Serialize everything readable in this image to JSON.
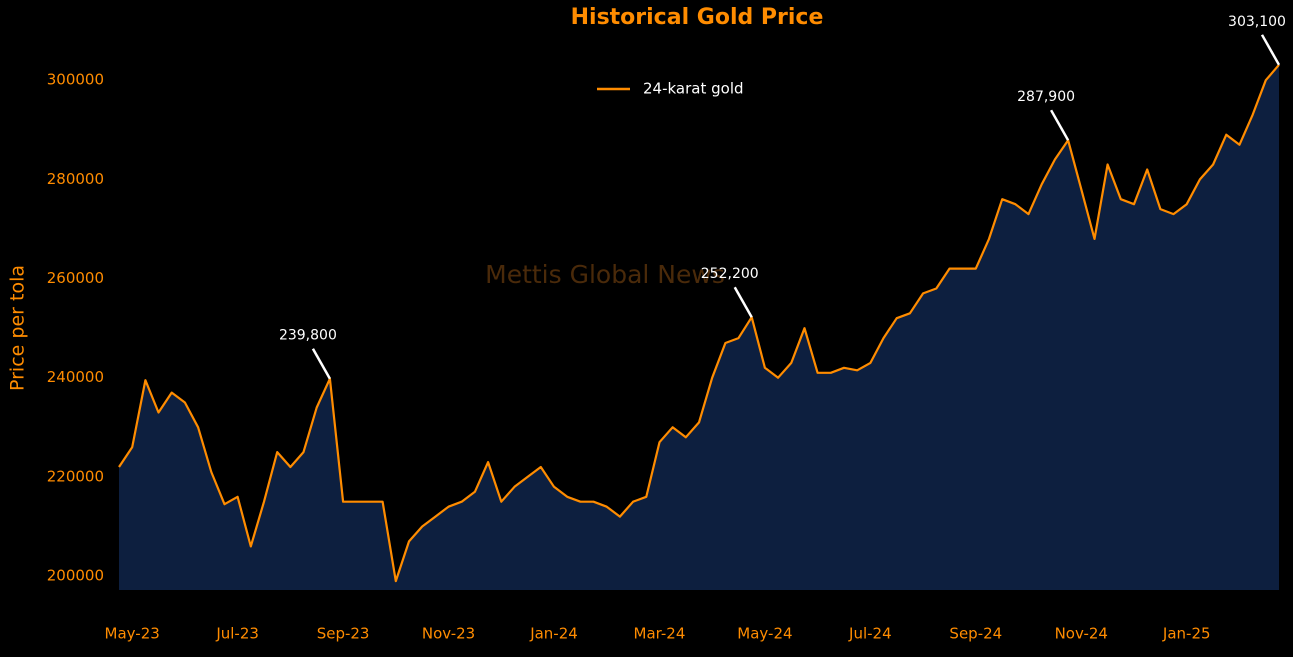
{
  "chart_data": {
    "type": "area",
    "title": "Historical Gold Price",
    "y_label": "Price per tola",
    "watermark": "Mettis Global News",
    "line_color": "#ff8c00",
    "fill_color": "#0d1f3f",
    "legend": "top",
    "categories": [
      null,
      "May-23",
      null,
      null,
      null,
      null,
      null,
      null,
      null,
      "Jul-23",
      null,
      null,
      null,
      null,
      null,
      null,
      null,
      "Sep-23",
      null,
      null,
      null,
      null,
      null,
      null,
      null,
      "Nov-23",
      null,
      null,
      null,
      null,
      null,
      null,
      null,
      "Jan-24",
      null,
      null,
      null,
      null,
      null,
      null,
      null,
      "Mar-24",
      null,
      null,
      null,
      null,
      null,
      null,
      null,
      "May-24",
      null,
      null,
      null,
      null,
      null,
      null,
      null,
      "Jul-24",
      null,
      null,
      null,
      null,
      null,
      null,
      null,
      "Sep-24",
      null,
      null,
      null,
      null,
      null,
      null,
      null,
      "Nov-24",
      null,
      null,
      null,
      null,
      null,
      null,
      null,
      "Jan-25",
      null,
      null,
      null,
      null,
      null,
      null,
      null
    ],
    "series": [
      {
        "name": "24-karat gold",
        "color": "#ff8c00",
        "values": [
          222000,
          226000,
          239500,
          233000,
          237000,
          235000,
          230000,
          221000,
          214500,
          216000,
          206000,
          215000,
          225000,
          222000,
          225000,
          234000,
          239800,
          215000,
          215000,
          215000,
          215000,
          199000,
          207000,
          210000,
          212000,
          214000,
          215000,
          217000,
          223000,
          215000,
          218000,
          220000,
          222000,
          218000,
          216000,
          215000,
          215000,
          214000,
          212000,
          215000,
          216000,
          227000,
          230000,
          228000,
          231000,
          240000,
          247000,
          248000,
          252200,
          242000,
          240000,
          243000,
          250000,
          241000,
          241000,
          242000,
          241500,
          243000,
          248000,
          252000,
          253000,
          257000,
          258000,
          262000,
          262000,
          262000,
          268000,
          276000,
          275000,
          273000,
          279000,
          284000,
          287900,
          278000,
          268000,
          283000,
          276000,
          275000,
          282000,
          274000,
          273000,
          275000,
          280000,
          283000,
          289000,
          287000,
          293000,
          300000,
          303100
        ],
        "value_labels": [
          null,
          null,
          null,
          null,
          null,
          null,
          null,
          null,
          null,
          null,
          null,
          null,
          null,
          null,
          null,
          null,
          "239,800",
          null,
          null,
          null,
          null,
          null,
          null,
          null,
          null,
          null,
          null,
          null,
          null,
          null,
          null,
          null,
          null,
          null,
          null,
          null,
          null,
          null,
          null,
          null,
          null,
          null,
          null,
          null,
          null,
          null,
          null,
          null,
          "252,200",
          null,
          null,
          null,
          null,
          null,
          null,
          null,
          null,
          null,
          null,
          null,
          null,
          null,
          null,
          null,
          null,
          null,
          null,
          null,
          null,
          null,
          null,
          null,
          "287,900",
          null,
          null,
          null,
          null,
          null,
          null,
          null,
          null,
          null,
          null,
          null,
          null,
          null,
          null,
          null,
          "303,100"
        ]
      }
    ],
    "ylim": [
      197200,
      307700
    ],
    "yticks": [
      200000,
      220000,
      240000,
      260000,
      280000,
      300000
    ]
  }
}
